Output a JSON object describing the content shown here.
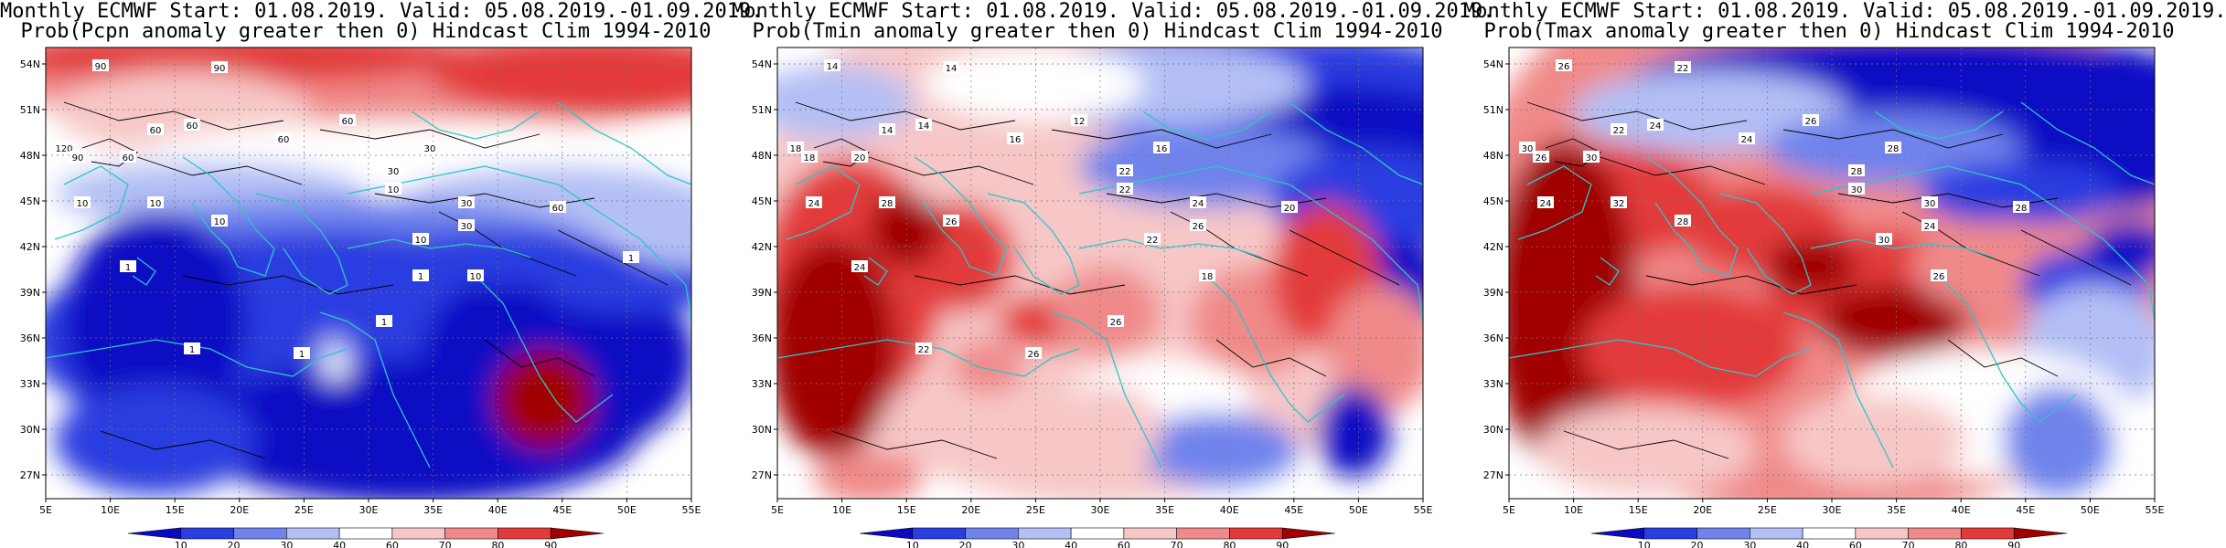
{
  "colors": {
    "c10": "#0b0bc4",
    "c20": "#2a3de0",
    "c30": "#6f83ec",
    "c40": "#b3bff5",
    "c50": "#ffffff",
    "c60": "#f7c7c7",
    "c70": "#f08a8a",
    "c80": "#e33a3a",
    "c90": "#a00000",
    "coast": "#2cc6c6",
    "contour": "#000000"
  },
  "axes": {
    "lat_labels": [
      "54N",
      "51N",
      "48N",
      "45N",
      "42N",
      "39N",
      "36N",
      "33N",
      "30N",
      "27N"
    ],
    "lon_labels": [
      "5E",
      "10E",
      "15E",
      "20E",
      "25E",
      "30E",
      "35E",
      "40E",
      "45E",
      "50E",
      "55E"
    ]
  },
  "colorbar": {
    "labels": [
      "10",
      "20",
      "30",
      "40",
      "60",
      "70",
      "80",
      "90"
    ]
  },
  "panels": [
    {
      "title1": "Monthly ECMWF Start: 01.08.2019. Valid: 05.08.2019.-01.09.2019.",
      "title2": "Prob(Pcpn anomaly greater then 0) Hindcast Clim 1994-2010",
      "contour_labels": [
        "90",
        "90",
        "60",
        "60",
        "60",
        "60",
        "30",
        "120",
        "90",
        "60",
        "30",
        "10",
        "10",
        "10",
        "10",
        "30",
        "10",
        "30",
        "60",
        "10",
        "1",
        "1",
        "1",
        "1",
        "1",
        "1"
      ]
    },
    {
      "title1": "Monthly ECMWF Start: 01.08.2019. Valid: 05.08.2019.-01.09.2019.",
      "title2": "Prob(Tmin anomaly greater then 0) Hindcast Clim 1994-2010",
      "contour_labels": [
        "14",
        "14",
        "14",
        "14",
        "16",
        "12",
        "16",
        "18",
        "18",
        "20",
        "22",
        "24",
        "22",
        "26",
        "28",
        "24",
        "22",
        "26",
        "20",
        "18",
        "24",
        "22",
        "26",
        "26"
      ]
    },
    {
      "title1": "Monthly ECMWF Start: 01.08.2019. Valid: 05.08.2019.-01.09.2019.",
      "title2": "Prob(Tmax anomaly greater then 0) Hindcast Clim 1994-2010",
      "contour_labels": [
        "26",
        "22",
        "22",
        "24",
        "24",
        "26",
        "28",
        "30",
        "26",
        "30",
        "28",
        "24",
        "30",
        "28",
        "32",
        "30",
        "30",
        "24",
        "28",
        "26"
      ]
    }
  ]
}
